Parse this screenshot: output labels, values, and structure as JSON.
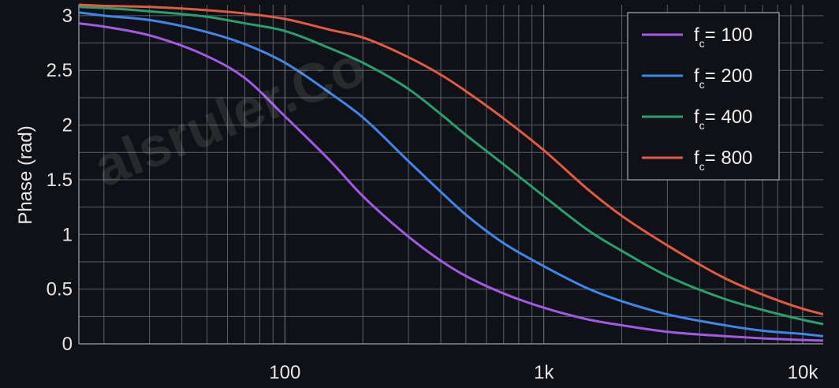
{
  "chart_data": {
    "type": "line",
    "title": "",
    "xlabel": "",
    "ylabel": "Phase (rad)",
    "xscale": "log",
    "xlim": [
      16,
      12000
    ],
    "ylim": [
      0,
      3.1
    ],
    "x_ticks": [
      {
        "value": 100,
        "label": "100"
      },
      {
        "value": 1000,
        "label": "1k"
      },
      {
        "value": 10000,
        "label": "10k"
      }
    ],
    "y_ticks": [
      {
        "value": 0,
        "label": "0"
      },
      {
        "value": 0.5,
        "label": "0.5"
      },
      {
        "value": 1,
        "label": "1"
      },
      {
        "value": 1.5,
        "label": "1.5"
      },
      {
        "value": 2,
        "label": "2"
      },
      {
        "value": 2.5,
        "label": "2.5"
      },
      {
        "value": 3,
        "label": "3"
      }
    ],
    "grid": true,
    "legend_position": "top-right",
    "x": [
      16,
      20,
      30,
      50,
      70,
      100,
      150,
      200,
      300,
      400,
      500,
      700,
      1000,
      1500,
      2000,
      3000,
      5000,
      7000,
      10000,
      12000
    ],
    "series": [
      {
        "name_main": "f",
        "name_sub": "c",
        "name_rest": "= 100",
        "color": "#a259e6",
        "values": [
          2.93,
          2.9,
          2.82,
          2.63,
          2.43,
          2.08,
          1.67,
          1.35,
          0.98,
          0.76,
          0.62,
          0.46,
          0.33,
          0.22,
          0.17,
          0.11,
          0.07,
          0.05,
          0.035,
          0.03
        ]
      },
      {
        "name_main": "f",
        "name_sub": "c",
        "name_rest": "= 200",
        "color": "#3f86ea",
        "values": [
          3.03,
          3.0,
          2.96,
          2.85,
          2.74,
          2.57,
          2.29,
          2.07,
          1.67,
          1.39,
          1.18,
          0.92,
          0.71,
          0.5,
          0.39,
          0.27,
          0.17,
          0.12,
          0.09,
          0.07
        ]
      },
      {
        "name_main": "f",
        "name_sub": "c",
        "name_rest": "= 400",
        "color": "#27a06c",
        "values": [
          3.08,
          3.07,
          3.04,
          2.99,
          2.93,
          2.86,
          2.7,
          2.57,
          2.33,
          2.1,
          1.91,
          1.64,
          1.35,
          1.03,
          0.85,
          0.62,
          0.41,
          0.31,
          0.22,
          0.18
        ]
      },
      {
        "name_main": "f",
        "name_sub": "c",
        "name_rest": "= 800",
        "color": "#e05a44",
        "values": [
          3.1,
          3.09,
          3.08,
          3.05,
          3.02,
          2.97,
          2.87,
          2.8,
          2.62,
          2.46,
          2.31,
          2.06,
          1.77,
          1.4,
          1.17,
          0.9,
          0.6,
          0.45,
          0.32,
          0.27
        ]
      }
    ]
  },
  "watermark": "alsruler.Co"
}
